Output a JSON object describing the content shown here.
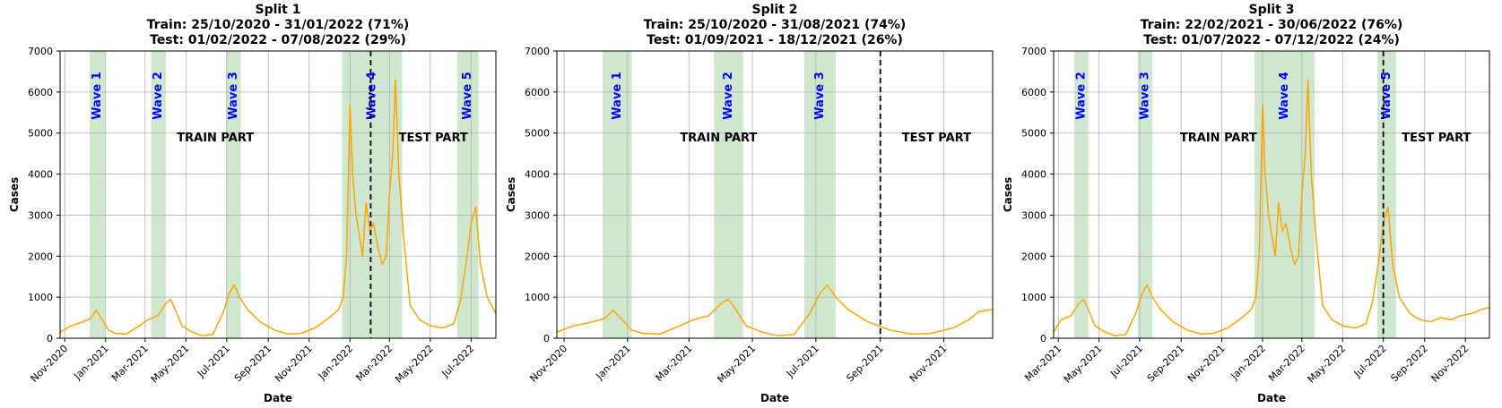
{
  "colors": {
    "line": "#ffa500",
    "wave_band": "#a7d3a7",
    "grid": "#b0b0b0",
    "wave_label": "#0000ff",
    "split_line": "#000000"
  },
  "chart_data": [
    {
      "type": "line",
      "title_lines": [
        "Split 1",
        "Train: 25/10/2020 - 31/01/2022 (71%)",
        "Test:  01/02/2022 - 07/08/2022 (29%)"
      ],
      "xlabel": "Date",
      "ylabel": "Cases",
      "xlim": [
        "2020-10-25",
        "2022-08-07"
      ],
      "ylim": [
        0,
        7000
      ],
      "yticks": [
        0,
        1000,
        2000,
        3000,
        4000,
        5000,
        6000,
        7000
      ],
      "xticks": [
        "2020-11-01",
        "2021-01-01",
        "2021-03-01",
        "2021-05-01",
        "2021-07-01",
        "2021-09-01",
        "2021-11-01",
        "2022-01-01",
        "2022-03-01",
        "2022-05-01",
        "2022-07-01"
      ],
      "xtick_labels": [
        "Nov-2020",
        "Jan-2021",
        "Mar-2021",
        "May-2021",
        "Jul-2021",
        "Sep-2021",
        "Nov-2021",
        "Jan-2022",
        "Mar-2022",
        "May-2022",
        "Jul-2022"
      ],
      "grid": true,
      "split_date": "2022-02-01",
      "train_label": "TRAIN PART",
      "test_label": "TEST PART",
      "waves": [
        {
          "label": "Wave 1",
          "start": "2020-12-08",
          "end": "2020-12-31"
        },
        {
          "label": "Wave 2",
          "start": "2021-03-10",
          "end": "2021-04-01"
        },
        {
          "label": "Wave 3",
          "start": "2021-06-30",
          "end": "2021-07-22"
        },
        {
          "label": "Wave 4",
          "start": "2021-12-20",
          "end": "2022-03-20"
        },
        {
          "label": "Wave 5",
          "start": "2022-06-10",
          "end": "2022-07-12"
        }
      ],
      "series": [
        {
          "x": [
            "2020-10-25",
            "2020-11-10",
            "2020-11-25",
            "2020-12-10",
            "2020-12-18",
            "2020-12-25",
            "2021-01-05",
            "2021-01-15",
            "2021-02-01",
            "2021-02-20",
            "2021-03-05",
            "2021-03-20",
            "2021-04-01",
            "2021-04-08",
            "2021-04-15",
            "2021-04-25",
            "2021-05-10",
            "2021-05-25",
            "2021-06-10",
            "2021-06-25",
            "2021-07-05",
            "2021-07-12",
            "2021-07-20",
            "2021-08-01",
            "2021-08-20",
            "2021-09-10",
            "2021-10-01",
            "2021-10-20",
            "2021-11-10",
            "2021-12-01",
            "2021-12-15",
            "2021-12-22",
            "2021-12-27",
            "2022-01-01",
            "2022-01-05",
            "2022-01-10",
            "2022-01-15",
            "2022-01-20",
            "2022-01-25",
            "2022-01-31",
            "2022-02-05",
            "2022-02-12",
            "2022-02-18",
            "2022-02-24",
            "2022-03-01",
            "2022-03-06",
            "2022-03-10",
            "2022-03-15",
            "2022-03-22",
            "2022-04-01",
            "2022-04-15",
            "2022-05-01",
            "2022-05-20",
            "2022-06-05",
            "2022-06-15",
            "2022-06-25",
            "2022-07-01",
            "2022-07-08",
            "2022-07-15",
            "2022-07-25",
            "2022-08-07"
          ],
          "values": [
            150,
            300,
            380,
            480,
            680,
            500,
            200,
            120,
            100,
            300,
            450,
            550,
            850,
            950,
            700,
            300,
            150,
            60,
            90,
            600,
            1100,
            1300,
            1000,
            700,
            400,
            200,
            100,
            120,
            250,
            500,
            700,
            1000,
            2000,
            5700,
            4000,
            3000,
            2500,
            2000,
            3300,
            2600,
            2800,
            2200,
            1800,
            2000,
            3500,
            4500,
            6300,
            4000,
            2500,
            800,
            450,
            300,
            250,
            350,
            900,
            2000,
            2800,
            3200,
            1800,
            1000,
            600
          ]
        }
      ]
    },
    {
      "type": "line",
      "title_lines": [
        "Split 2",
        "Train: 25/10/2020 - 31/08/2021 (74%)",
        "Test:  01/09/2021 - 18/12/2021 (26%)"
      ],
      "xlabel": "Date",
      "ylabel": "Cases",
      "xlim": [
        "2020-10-25",
        "2021-12-18"
      ],
      "ylim": [
        0,
        7000
      ],
      "yticks": [
        0,
        1000,
        2000,
        3000,
        4000,
        5000,
        6000,
        7000
      ],
      "xticks": [
        "2020-11-01",
        "2021-01-01",
        "2021-03-01",
        "2021-05-01",
        "2021-07-01",
        "2021-09-01",
        "2021-11-01"
      ],
      "xtick_labels": [
        "Nov-2020",
        "Jan-2021",
        "Mar-2021",
        "May-2021",
        "Jul-2021",
        "Sep-2021",
        "Nov-2021"
      ],
      "grid": true,
      "split_date": "2021-09-01",
      "train_label": "TRAIN PART",
      "test_label": "TEST PART",
      "waves": [
        {
          "label": "Wave 1",
          "start": "2020-12-08",
          "end": "2021-01-05"
        },
        {
          "label": "Wave 2",
          "start": "2021-03-25",
          "end": "2021-04-22"
        },
        {
          "label": "Wave 3",
          "start": "2021-06-20",
          "end": "2021-07-20"
        }
      ],
      "series": [
        {
          "x": [
            "2020-10-25",
            "2020-11-10",
            "2020-11-25",
            "2020-12-10",
            "2020-12-18",
            "2020-12-25",
            "2021-01-05",
            "2021-01-15",
            "2021-02-01",
            "2021-02-20",
            "2021-03-05",
            "2021-03-20",
            "2021-04-01",
            "2021-04-08",
            "2021-04-15",
            "2021-04-25",
            "2021-05-10",
            "2021-05-25",
            "2021-06-10",
            "2021-06-25",
            "2021-07-05",
            "2021-07-12",
            "2021-07-20",
            "2021-08-01",
            "2021-08-20",
            "2021-09-10",
            "2021-10-01",
            "2021-10-20",
            "2021-11-10",
            "2021-11-25",
            "2021-12-05",
            "2021-12-18"
          ],
          "values": [
            150,
            300,
            380,
            480,
            680,
            500,
            200,
            120,
            100,
            300,
            450,
            550,
            850,
            950,
            700,
            300,
            150,
            60,
            90,
            600,
            1100,
            1300,
            1000,
            700,
            400,
            200,
            100,
            120,
            250,
            450,
            650,
            700
          ]
        }
      ]
    },
    {
      "type": "line",
      "title_lines": [
        "Split 3",
        "Train: 22/02/2021 - 30/06/2022 (76%)",
        "Test:  01/07/2022 - 07/12/2022 (24%)"
      ],
      "xlabel": "Date",
      "ylabel": "Cases",
      "xlim": [
        "2021-02-22",
        "2022-12-07"
      ],
      "ylim": [
        0,
        7000
      ],
      "yticks": [
        0,
        1000,
        2000,
        3000,
        4000,
        5000,
        6000,
        7000
      ],
      "xticks": [
        "2021-03-01",
        "2021-05-01",
        "2021-07-01",
        "2021-09-01",
        "2021-11-01",
        "2022-01-01",
        "2022-03-01",
        "2022-05-01",
        "2022-07-01",
        "2022-09-01",
        "2022-11-01"
      ],
      "xtick_labels": [
        "Mar-2021",
        "May-2021",
        "Jul-2021",
        "Sep-2021",
        "Nov-2021",
        "Jan-2022",
        "Mar-2022",
        "May-2022",
        "Jul-2022",
        "Sep-2022",
        "Nov-2022"
      ],
      "grid": true,
      "split_date": "2022-07-01",
      "train_label": "TRAIN PART",
      "test_label": "TEST PART",
      "waves": [
        {
          "label": "Wave 2",
          "start": "2021-03-25",
          "end": "2021-04-15"
        },
        {
          "label": "Wave 3",
          "start": "2021-06-28",
          "end": "2021-07-20"
        },
        {
          "label": "Wave 4",
          "start": "2021-12-20",
          "end": "2022-03-20"
        },
        {
          "label": "Wave 5",
          "start": "2022-06-22",
          "end": "2022-07-20"
        }
      ],
      "series": [
        {
          "x": [
            "2021-02-22",
            "2021-03-05",
            "2021-03-20",
            "2021-04-01",
            "2021-04-08",
            "2021-04-15",
            "2021-04-25",
            "2021-05-10",
            "2021-05-25",
            "2021-06-10",
            "2021-06-25",
            "2021-07-05",
            "2021-07-12",
            "2021-07-20",
            "2021-08-01",
            "2021-08-20",
            "2021-09-10",
            "2021-10-01",
            "2021-10-20",
            "2021-11-10",
            "2021-12-01",
            "2021-12-15",
            "2021-12-22",
            "2021-12-27",
            "2022-01-01",
            "2022-01-05",
            "2022-01-10",
            "2022-01-15",
            "2022-01-20",
            "2022-01-25",
            "2022-01-31",
            "2022-02-05",
            "2022-02-12",
            "2022-02-18",
            "2022-02-24",
            "2022-03-01",
            "2022-03-06",
            "2022-03-10",
            "2022-03-15",
            "2022-03-22",
            "2022-04-01",
            "2022-04-15",
            "2022-05-01",
            "2022-05-20",
            "2022-06-05",
            "2022-06-15",
            "2022-06-25",
            "2022-07-01",
            "2022-07-08",
            "2022-07-15",
            "2022-07-25",
            "2022-08-10",
            "2022-08-25",
            "2022-09-10",
            "2022-09-25",
            "2022-10-10",
            "2022-10-25",
            "2022-11-10",
            "2022-11-25",
            "2022-12-07"
          ],
          "values": [
            150,
            450,
            550,
            850,
            950,
            700,
            300,
            150,
            60,
            90,
            600,
            1100,
            1300,
            1000,
            700,
            400,
            200,
            100,
            120,
            250,
            500,
            700,
            1000,
            2000,
            5700,
            4000,
            3000,
            2500,
            2000,
            3300,
            2600,
            2800,
            2200,
            1800,
            2000,
            3500,
            4500,
            6300,
            4000,
            2500,
            800,
            450,
            300,
            250,
            350,
            900,
            2000,
            2800,
            3200,
            1800,
            1000,
            600,
            450,
            400,
            500,
            450,
            550,
            600,
            700,
            750
          ]
        }
      ]
    }
  ]
}
